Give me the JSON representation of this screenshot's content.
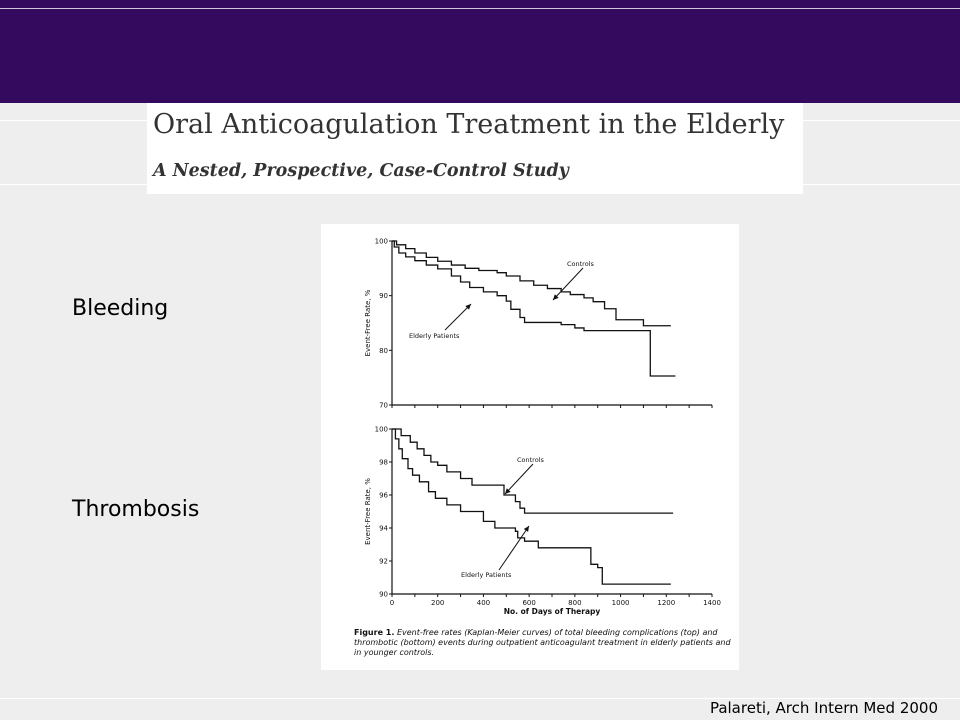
{
  "slide": {
    "title": "Oral Anticoagulation Treatment in the Elderly",
    "subtitle": "A Nested, Prospective, Case-Control Study",
    "label_bleeding": "Bleeding",
    "label_thrombosis": "Thrombosis",
    "citation": "Palareti, Arch Intern Med 2000",
    "band_color": "#330a5e"
  },
  "figure": {
    "caption_lead": "Figure 1.",
    "caption_text": "Event-free rates (Kaplan-Meier curves) of total bleeding complications (top) and thrombotic (bottom) events during outpatient anticoagulant treatment in elderly patients and in younger controls."
  },
  "chart_data": [
    {
      "type": "line",
      "title": "",
      "xlabel": "",
      "ylabel": "Event-Free Rate, %",
      "xlim": [
        0,
        1400
      ],
      "ylim": [
        70,
        100
      ],
      "yticks": [
        70,
        80,
        90,
        100
      ],
      "grid": false,
      "series": [
        {
          "name": "Controls",
          "step": true,
          "points": [
            [
              0,
              100
            ],
            [
              20,
              99.3
            ],
            [
              60,
              98.6
            ],
            [
              100,
              97.8
            ],
            [
              150,
              97
            ],
            [
              200,
              96.3
            ],
            [
              260,
              95.6
            ],
            [
              320,
              95
            ],
            [
              380,
              94.6
            ],
            [
              460,
              94.2
            ],
            [
              500,
              93.6
            ],
            [
              560,
              92.7
            ],
            [
              620,
              91.9
            ],
            [
              680,
              91.3
            ],
            [
              740,
              90.7
            ],
            [
              780,
              90.2
            ],
            [
              840,
              89.6
            ],
            [
              880,
              88.9
            ],
            [
              930,
              87.6
            ],
            [
              980,
              85.6
            ],
            [
              1080,
              85.6
            ],
            [
              1100,
              84.5
            ],
            [
              1220,
              84.5
            ]
          ]
        },
        {
          "name": "Elderly Patients",
          "step": true,
          "points": [
            [
              0,
              100
            ],
            [
              10,
              98.9
            ],
            [
              30,
              97.8
            ],
            [
              60,
              97.1
            ],
            [
              100,
              96.4
            ],
            [
              150,
              95.6
            ],
            [
              200,
              94.9
            ],
            [
              260,
              93.6
            ],
            [
              300,
              92.5
            ],
            [
              340,
              91.5
            ],
            [
              400,
              90.7
            ],
            [
              460,
              90
            ],
            [
              500,
              89
            ],
            [
              520,
              87.5
            ],
            [
              560,
              86
            ],
            [
              580,
              85.1
            ],
            [
              680,
              85.1
            ],
            [
              740,
              84.7
            ],
            [
              800,
              84.1
            ],
            [
              840,
              83.6
            ],
            [
              1130,
              83.6
            ],
            [
              1130,
              75.3
            ],
            [
              1240,
              75.3
            ]
          ]
        }
      ],
      "annotations": [
        "Controls",
        "Elderly Patients"
      ]
    },
    {
      "type": "line",
      "title": "",
      "xlabel": "No. of Days of Therapy",
      "ylabel": "Event-Free Rate, %",
      "xlim": [
        0,
        1400
      ],
      "ylim": [
        90,
        100
      ],
      "xticks": [
        0,
        200,
        400,
        600,
        800,
        1000,
        1200,
        1400
      ],
      "yticks": [
        90,
        92,
        94,
        96,
        98,
        100
      ],
      "grid": false,
      "series": [
        {
          "name": "Controls",
          "step": true,
          "points": [
            [
              0,
              100
            ],
            [
              40,
              99.6
            ],
            [
              80,
              99.2
            ],
            [
              110,
              98.8
            ],
            [
              140,
              98.4
            ],
            [
              170,
              98
            ],
            [
              200,
              97.8
            ],
            [
              240,
              97.4
            ],
            [
              300,
              97
            ],
            [
              350,
              96.6
            ],
            [
              480,
              96.6
            ],
            [
              490,
              96
            ],
            [
              540,
              95.6
            ],
            [
              560,
              95.2
            ],
            [
              580,
              94.9
            ],
            [
              1230,
              94.9
            ]
          ]
        },
        {
          "name": "Elderly Patients",
          "step": true,
          "points": [
            [
              0,
              100
            ],
            [
              15,
              99.4
            ],
            [
              30,
              98.8
            ],
            [
              45,
              98.2
            ],
            [
              70,
              97.6
            ],
            [
              90,
              97.2
            ],
            [
              120,
              96.8
            ],
            [
              160,
              96.2
            ],
            [
              190,
              95.8
            ],
            [
              240,
              95.4
            ],
            [
              300,
              95
            ],
            [
              400,
              94.4
            ],
            [
              450,
              94
            ],
            [
              540,
              93.8
            ],
            [
              550,
              93.4
            ],
            [
              580,
              93.2
            ],
            [
              640,
              92.8
            ],
            [
              860,
              92.8
            ],
            [
              870,
              91.8
            ],
            [
              900,
              91.6
            ],
            [
              920,
              90.6
            ],
            [
              1220,
              90.6
            ]
          ]
        }
      ],
      "annotations": [
        "Controls",
        "Elderly Patients"
      ]
    }
  ]
}
